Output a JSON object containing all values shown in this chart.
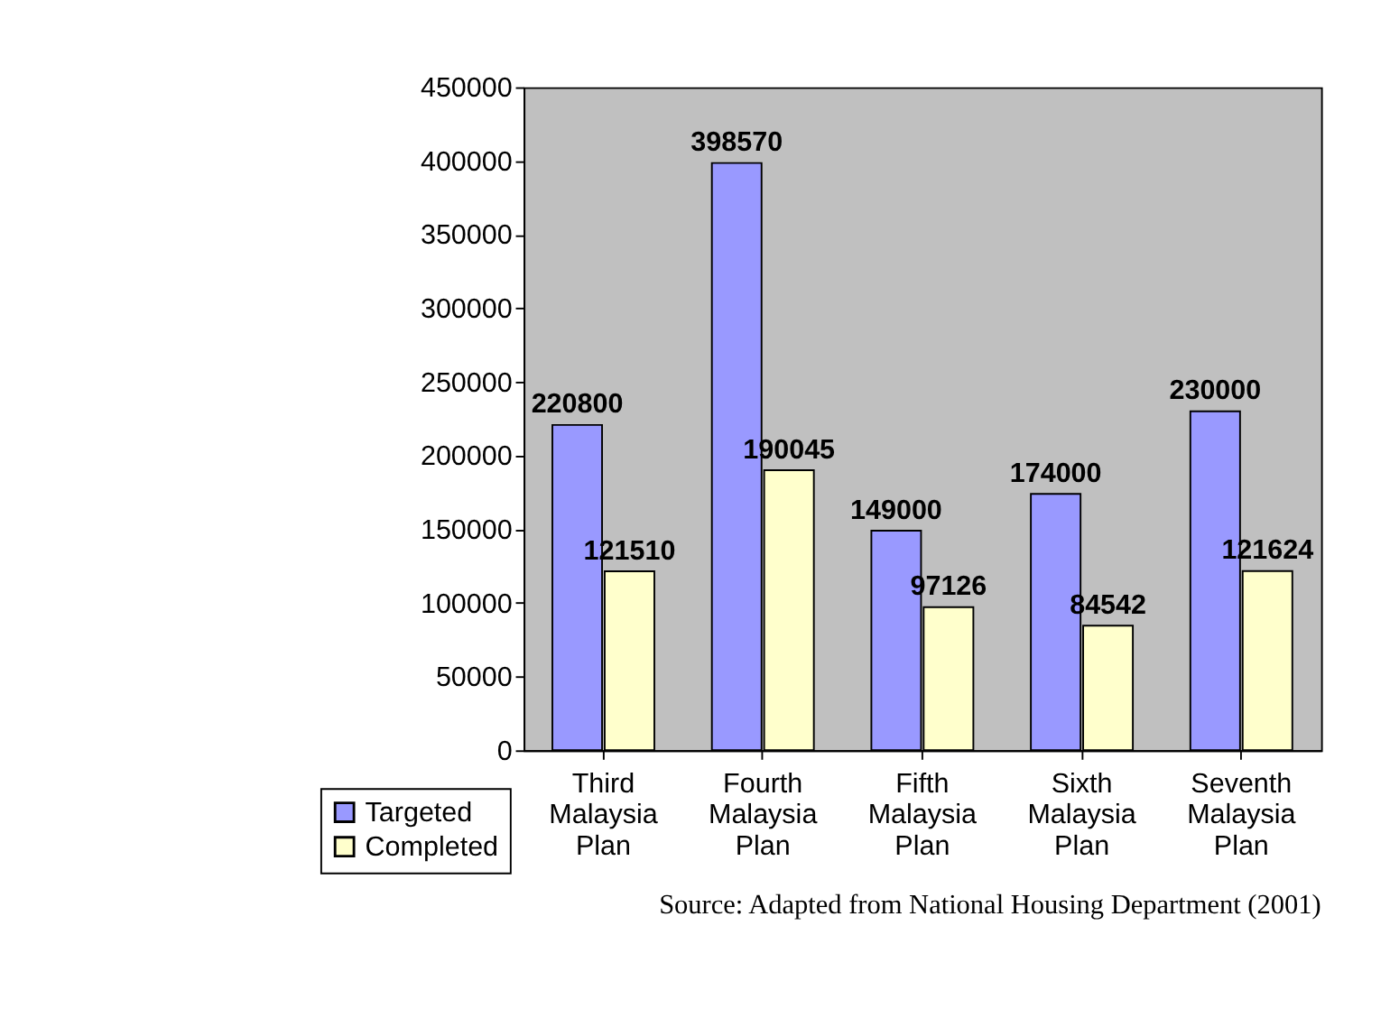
{
  "chart_data": {
    "type": "bar",
    "categories": [
      "Third Malaysia Plan",
      "Fourth Malaysia Plan",
      "Fifth Malaysia Plan",
      "Sixth Malaysia Plan",
      "Seventh Malaysia Plan"
    ],
    "series": [
      {
        "name": "Targeted",
        "color": "#9999ff",
        "values": [
          220800,
          398570,
          149000,
          174000,
          230000
        ]
      },
      {
        "name": "Completed",
        "color": "#ffffcc",
        "values": [
          121510,
          190045,
          97126,
          84542,
          121624
        ]
      }
    ],
    "ylim": [
      0,
      450000
    ],
    "yticks": [
      0,
      50000,
      100000,
      150000,
      200000,
      250000,
      300000,
      350000,
      400000,
      450000
    ],
    "grid": false,
    "legend": "bottom left",
    "data_labels": true,
    "annotations": [
      "Source: Adapted from National Housing Department (2001)"
    ]
  }
}
